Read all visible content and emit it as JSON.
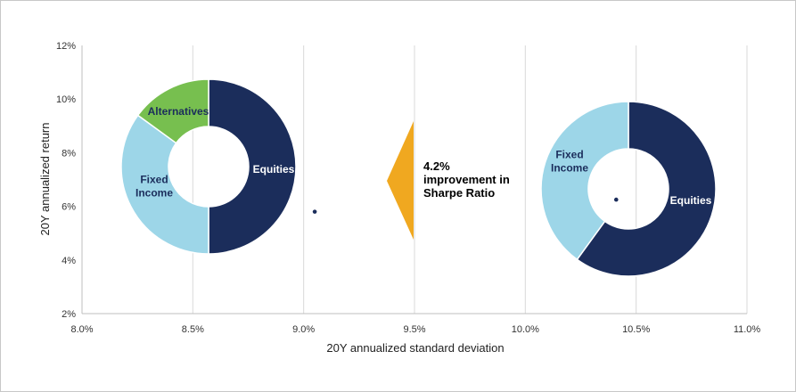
{
  "chart_data": {
    "type": "scatter",
    "title": "",
    "xlabel": "20Y annualized standard deviation",
    "ylabel": "20Y annualized return",
    "xlim": [
      8.0,
      11.0
    ],
    "ylim": [
      2,
      12
    ],
    "x_ticks": [
      "8.0%",
      "8.5%",
      "9.0%",
      "9.5%",
      "10.0%",
      "10.5%",
      "11.0%"
    ],
    "y_ticks": [
      "2%",
      "4%",
      "6%",
      "8%",
      "10%",
      "12%"
    ],
    "grid": "vertical",
    "points": [
      {
        "x": 9.05,
        "y": 5.8
      },
      {
        "x": 10.41,
        "y": 6.25
      }
    ],
    "donuts": [
      {
        "slices": [
          {
            "label": "Equities",
            "value": 50,
            "color": "#1b2d5b",
            "label_color": "#ffffff"
          },
          {
            "label": "Fixed Income",
            "value": 35,
            "color": "#9dd6e8",
            "label_color": "#1b2d5b"
          },
          {
            "label": "Alternatives",
            "value": 15,
            "color": "#77bf4f",
            "label_color": "#1b2d5b"
          }
        ]
      },
      {
        "slices": [
          {
            "label": "Equities",
            "value": 60,
            "color": "#1b2d5b",
            "label_color": "#ffffff"
          },
          {
            "label": "Fixed Income",
            "value": 40,
            "color": "#9dd6e8",
            "label_color": "#1b2d5b"
          }
        ]
      }
    ],
    "annotation": {
      "lines": [
        "4.2%",
        "improvement in",
        "Sharpe Ratio"
      ],
      "arrow_color": "#f0a820"
    }
  }
}
